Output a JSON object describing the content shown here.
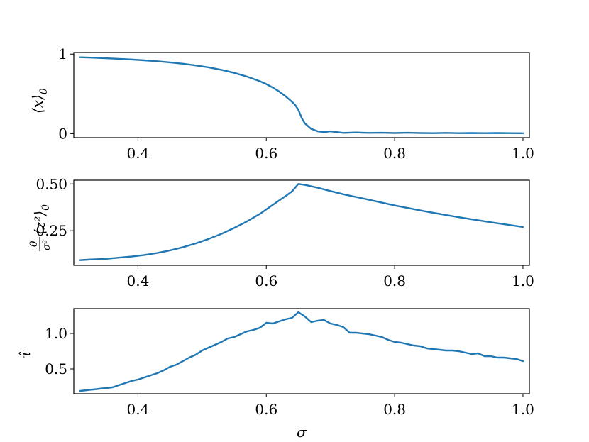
{
  "colors": {
    "series": "#1f77b4"
  },
  "xlabel": "σ",
  "chart_data": [
    {
      "type": "line",
      "ylabel_main": "⟨x⟩",
      "ylabel_sub": "0",
      "xlim": [
        0.3,
        1.01
      ],
      "ylim": [
        -0.05,
        1.02
      ],
      "xticks": [
        0.4,
        0.6,
        0.8,
        1.0
      ],
      "xtick_labels": [
        "0.4",
        "0.6",
        "0.8",
        "1.0"
      ],
      "yticks": [
        0,
        1
      ],
      "ytick_labels": [
        "0",
        "1"
      ],
      "series": [
        {
          "x": [
            0.31,
            0.33,
            0.35,
            0.37,
            0.39,
            0.41,
            0.43,
            0.45,
            0.47,
            0.49,
            0.51,
            0.53,
            0.55,
            0.57,
            0.59,
            0.6,
            0.61,
            0.62,
            0.63,
            0.64,
            0.645,
            0.65,
            0.655,
            0.66,
            0.67,
            0.68,
            0.69,
            0.7,
            0.71,
            0.72,
            0.74,
            0.76,
            0.78,
            0.8,
            0.82,
            0.84,
            0.86,
            0.88,
            0.9,
            0.92,
            0.94,
            0.96,
            0.98,
            1.0
          ],
          "y": [
            0.96,
            0.955,
            0.948,
            0.94,
            0.932,
            0.922,
            0.91,
            0.896,
            0.879,
            0.858,
            0.833,
            0.802,
            0.764,
            0.717,
            0.659,
            0.623,
            0.58,
            0.53,
            0.47,
            0.4,
            0.36,
            0.3,
            0.2,
            0.13,
            0.06,
            0.03,
            0.02,
            0.03,
            0.02,
            0.01,
            0.015,
            0.01,
            0.012,
            0.008,
            0.012,
            0.008,
            0.006,
            0.01,
            0.006,
            0.008,
            0.006,
            0.008,
            0.006,
            0.005
          ]
        }
      ]
    },
    {
      "type": "line",
      "ylabel_main": "⟨z²⟩",
      "ylabel_sub": "0",
      "ylabel_frac_num": "θ",
      "ylabel_frac_den": "σ²",
      "xlim": [
        0.3,
        1.01
      ],
      "ylim": [
        0.065,
        0.52
      ],
      "xticks": [
        0.4,
        0.6,
        0.8,
        1.0
      ],
      "xtick_labels": [
        "0.4",
        "0.6",
        "0.8",
        "1.0"
      ],
      "yticks": [
        0.25,
        0.5
      ],
      "ytick_labels": [
        "0.25",
        "0.50"
      ],
      "series": [
        {
          "x": [
            0.31,
            0.33,
            0.35,
            0.37,
            0.39,
            0.41,
            0.43,
            0.45,
            0.47,
            0.49,
            0.51,
            0.53,
            0.55,
            0.57,
            0.59,
            0.61,
            0.63,
            0.64,
            0.645,
            0.65,
            0.66,
            0.68,
            0.7,
            0.72,
            0.75,
            0.8,
            0.85,
            0.9,
            0.95,
            1.0
          ],
          "y": [
            0.093,
            0.097,
            0.1,
            0.106,
            0.112,
            0.12,
            0.131,
            0.145,
            0.162,
            0.182,
            0.206,
            0.233,
            0.265,
            0.3,
            0.34,
            0.388,
            0.435,
            0.46,
            0.48,
            0.5,
            0.495,
            0.48,
            0.462,
            0.445,
            0.423,
            0.385,
            0.352,
            0.322,
            0.295,
            0.27
          ]
        }
      ]
    },
    {
      "type": "line",
      "ylabel_main": "τ̂",
      "xlim": [
        0.3,
        1.01
      ],
      "ylim": [
        0.15,
        1.35
      ],
      "xticks": [
        0.4,
        0.6,
        0.8,
        1.0
      ],
      "xtick_labels": [
        "0.4",
        "0.6",
        "0.8",
        "1.0"
      ],
      "yticks": [
        0.5,
        1.0
      ],
      "ytick_labels": [
        "0.5",
        "1.0"
      ],
      "series": [
        {
          "x": [
            0.31,
            0.32,
            0.33,
            0.34,
            0.35,
            0.36,
            0.37,
            0.38,
            0.39,
            0.4,
            0.41,
            0.42,
            0.43,
            0.44,
            0.45,
            0.46,
            0.47,
            0.48,
            0.49,
            0.5,
            0.51,
            0.52,
            0.53,
            0.54,
            0.55,
            0.56,
            0.57,
            0.58,
            0.59,
            0.6,
            0.61,
            0.62,
            0.63,
            0.64,
            0.65,
            0.66,
            0.67,
            0.68,
            0.69,
            0.7,
            0.71,
            0.72,
            0.73,
            0.74,
            0.75,
            0.76,
            0.77,
            0.78,
            0.79,
            0.8,
            0.81,
            0.82,
            0.83,
            0.84,
            0.85,
            0.86,
            0.87,
            0.88,
            0.89,
            0.9,
            0.91,
            0.92,
            0.93,
            0.94,
            0.95,
            0.96,
            0.97,
            0.98,
            0.99,
            1.0
          ],
          "y": [
            0.19,
            0.2,
            0.21,
            0.22,
            0.23,
            0.24,
            0.27,
            0.3,
            0.33,
            0.35,
            0.38,
            0.41,
            0.44,
            0.48,
            0.53,
            0.56,
            0.61,
            0.66,
            0.7,
            0.76,
            0.8,
            0.84,
            0.88,
            0.93,
            0.95,
            0.99,
            1.03,
            1.05,
            1.08,
            1.15,
            1.14,
            1.17,
            1.2,
            1.22,
            1.3,
            1.24,
            1.16,
            1.18,
            1.19,
            1.14,
            1.12,
            1.09,
            1.01,
            1.01,
            1.0,
            0.99,
            0.97,
            0.95,
            0.91,
            0.88,
            0.87,
            0.85,
            0.83,
            0.82,
            0.79,
            0.78,
            0.77,
            0.76,
            0.76,
            0.75,
            0.73,
            0.71,
            0.72,
            0.68,
            0.68,
            0.66,
            0.66,
            0.65,
            0.64,
            0.61
          ]
        }
      ]
    }
  ]
}
